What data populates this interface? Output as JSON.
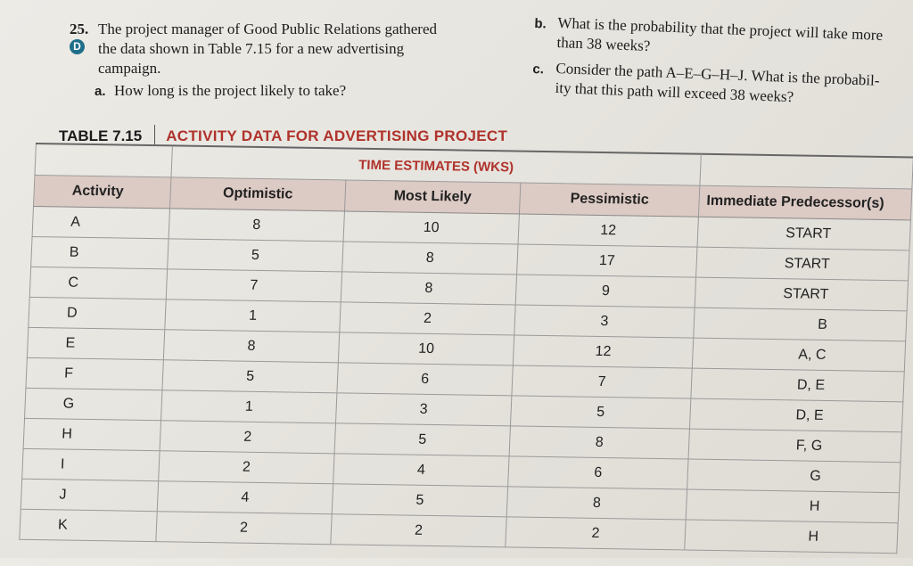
{
  "problem": {
    "number": "25.",
    "badge": "D",
    "lines": [
      "The project manager of Good Public Relations gathered",
      "the data shown in Table 7.15 for a new advertising",
      "campaign."
    ],
    "part_a_label": "a.",
    "part_a": "How long is the project likely to take?",
    "part_b_label": "b.",
    "part_b_lines": [
      "What is the probability that the project will take more",
      "than 38 weeks?"
    ],
    "part_c_label": "c.",
    "part_c_lines": [
      "Consider the path A–E–G–H–J. What is the probabil-",
      "ity that this path will exceed 38 weeks?"
    ]
  },
  "table": {
    "number": "TABLE 7.15",
    "title": "ACTIVITY DATA FOR ADVERTISING PROJECT",
    "group_header": "TIME ESTIMATES (WKS)",
    "columns": [
      "Activity",
      "Optimistic",
      "Most Likely",
      "Pessimistic",
      "Immediate Predecessor(s)"
    ],
    "rows": [
      [
        "A",
        "8",
        "10",
        "12",
        "START"
      ],
      [
        "B",
        "5",
        "8",
        "17",
        "START"
      ],
      [
        "C",
        "7",
        "8",
        "9",
        "START"
      ],
      [
        "D",
        "1",
        "2",
        "3",
        "B"
      ],
      [
        "E",
        "8",
        "10",
        "12",
        "A, C"
      ],
      [
        "F",
        "5",
        "6",
        "7",
        "D, E"
      ],
      [
        "G",
        "1",
        "3",
        "5",
        "D, E"
      ],
      [
        "H",
        "2",
        "5",
        "8",
        "F, G"
      ],
      [
        "I",
        "2",
        "4",
        "6",
        "G"
      ],
      [
        "J",
        "4",
        "5",
        "8",
        "H"
      ],
      [
        "K",
        "2",
        "2",
        "2",
        "H"
      ]
    ]
  }
}
